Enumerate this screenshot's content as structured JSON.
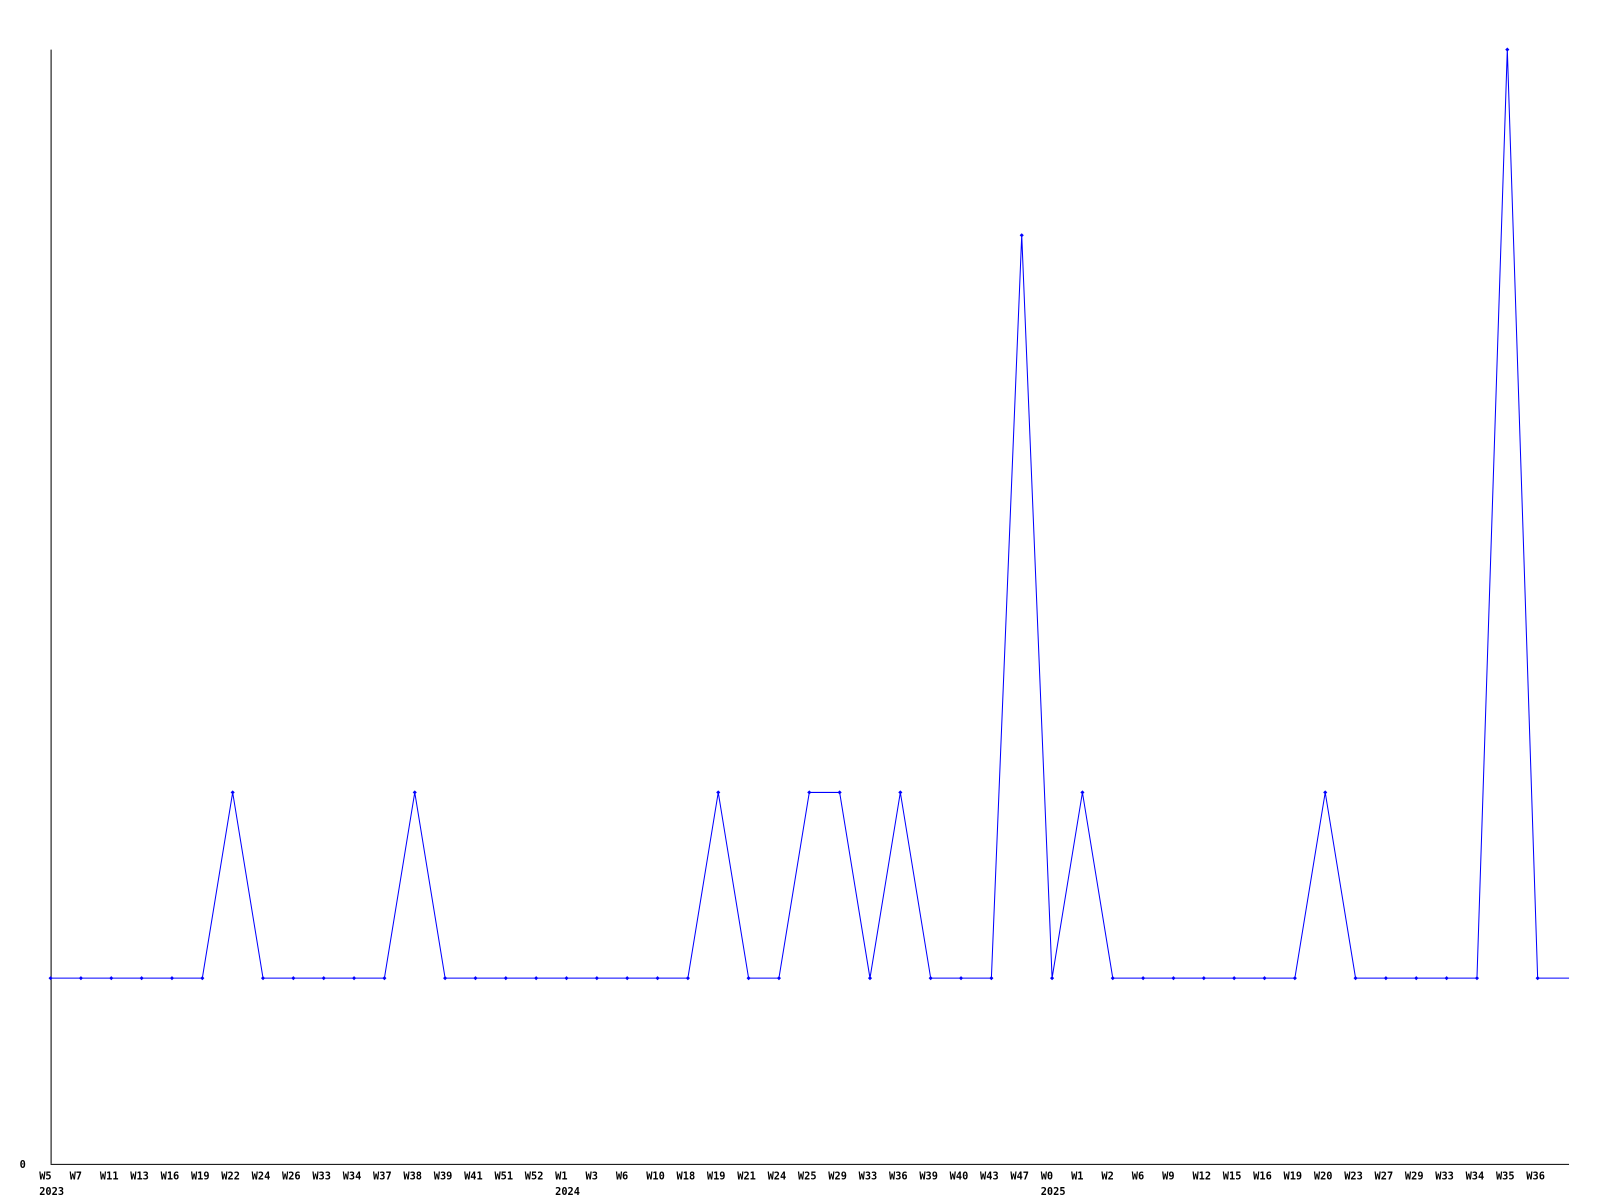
{
  "chart_data": {
    "type": "line",
    "title": "",
    "xlabel": "",
    "ylabel": "",
    "ylim": [
      0,
      6
    ],
    "y_tick_labels": [
      "0"
    ],
    "grid": false,
    "line_color": "#0000ff",
    "axis_color": "#000000",
    "categories": [
      "W5",
      "W7",
      "W11",
      "W13",
      "W16",
      "W19",
      "W22",
      "W24",
      "W26",
      "W33",
      "W34",
      "W37",
      "W38",
      "W39",
      "W41",
      "W51",
      "W52",
      "W1",
      "W3",
      "W6",
      "W10",
      "W18",
      "W19",
      "W21",
      "W24",
      "W25",
      "W29",
      "W33",
      "W36",
      "W39",
      "W40",
      "W43",
      "W47",
      "W0",
      "W1",
      "W2",
      "W6",
      "W9",
      "W12",
      "W15",
      "W16",
      "W19",
      "W20",
      "W23",
      "W27",
      "W29",
      "W33",
      "W34",
      "W35",
      "W36"
    ],
    "year_labels": [
      {
        "year": "2023",
        "at_index": 0
      },
      {
        "year": "2024",
        "at_index": 17
      },
      {
        "year": "2025",
        "at_index": 33
      }
    ],
    "values": [
      1,
      1,
      1,
      1,
      1,
      1,
      2,
      1,
      1,
      1,
      1,
      1,
      2,
      1,
      1,
      1,
      1,
      1,
      1,
      1,
      1,
      1,
      2,
      1,
      1,
      2,
      2,
      1,
      2,
      1,
      1,
      1,
      5,
      1,
      2,
      1,
      1,
      1,
      1,
      1,
      1,
      1,
      2,
      1,
      1,
      1,
      1,
      1,
      6,
      1
    ]
  }
}
